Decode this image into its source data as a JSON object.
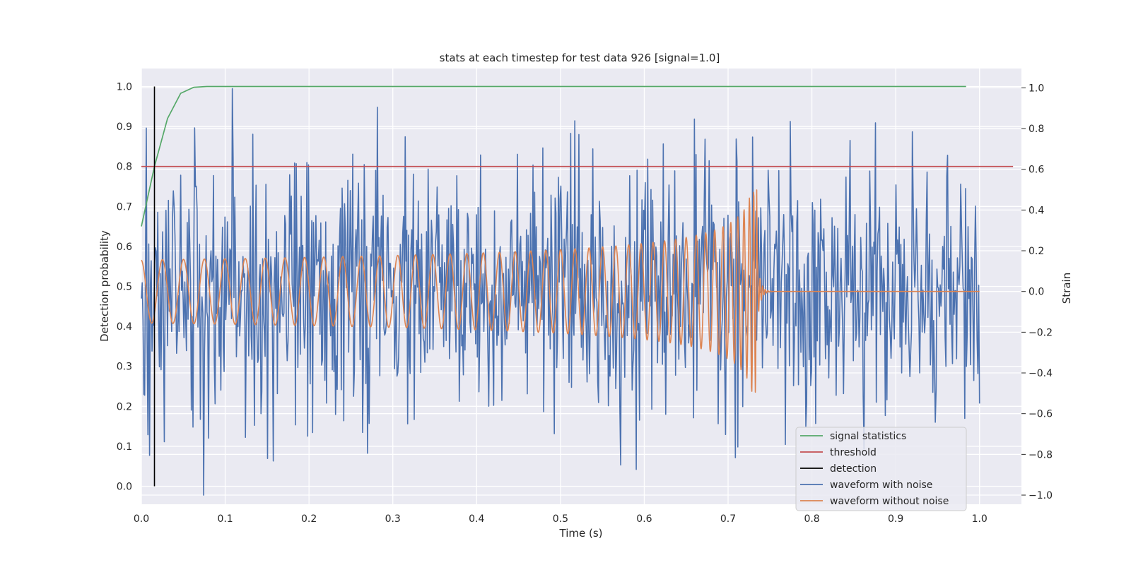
{
  "chart_data": {
    "type": "line",
    "title": "stats at each timestep for test data 926 [signal=1.0]",
    "xlabel": "Time (s)",
    "ylabel": "Detection probability",
    "ylabel_right": "Strain",
    "xlim": [
      0.0,
      1.05
    ],
    "ylim": [
      -0.045,
      1.045
    ],
    "ylim_right": [
      -1.045,
      1.095
    ],
    "x_ticks": [
      "0.0",
      "0.1",
      "0.2",
      "0.3",
      "0.4",
      "0.5",
      "0.6",
      "0.7",
      "0.8",
      "0.9",
      "1.0"
    ],
    "y_ticks": [
      "0.0",
      "0.1",
      "0.2",
      "0.3",
      "0.4",
      "0.5",
      "0.6",
      "0.7",
      "0.8",
      "0.9",
      "1.0"
    ],
    "y_ticks_right": [
      "−1.0",
      "−0.8",
      "−0.6",
      "−0.4",
      "−0.2",
      "0.0",
      "0.2",
      "0.4",
      "0.6",
      "0.8",
      "1.0"
    ],
    "grid": true,
    "legend_position": "lower-right",
    "series": [
      {
        "name": "signal statistics",
        "color": "#55a868",
        "axis": "left",
        "x": [
          0.0,
          0.0156,
          0.0312,
          0.0469,
          0.0625,
          0.0781,
          0.1,
          0.2,
          0.3,
          0.4,
          0.5,
          0.6,
          0.7,
          0.8,
          0.9,
          0.984
        ],
        "y": [
          0.65,
          0.8,
          0.92,
          0.983,
          0.998,
          1.0,
          1.0,
          1.0,
          1.0,
          1.0,
          1.0,
          1.0,
          1.0,
          1.0,
          1.0,
          1.0
        ]
      },
      {
        "name": "threshold",
        "color": "#c44e52",
        "axis": "left",
        "x": [
          0.0,
          1.04
        ],
        "y": [
          0.8,
          0.8
        ]
      },
      {
        "name": "detection",
        "color": "#000000",
        "axis": "left",
        "x": [
          0.0156,
          0.0156
        ],
        "y": [
          0.0,
          1.0
        ]
      },
      {
        "name": "waveform with noise",
        "color": "#4c72b0",
        "axis": "right",
        "x_range": [
          0.0,
          1.0
        ],
        "samples": 1024,
        "amplitude_range": [
          -1.0,
          1.0
        ]
      },
      {
        "name": "waveform without noise",
        "color": "#dd8452",
        "axis": "right",
        "x_range": [
          0.0,
          1.0
        ],
        "peak_time": 0.735,
        "peak_amplitude": 0.5
      }
    ]
  }
}
